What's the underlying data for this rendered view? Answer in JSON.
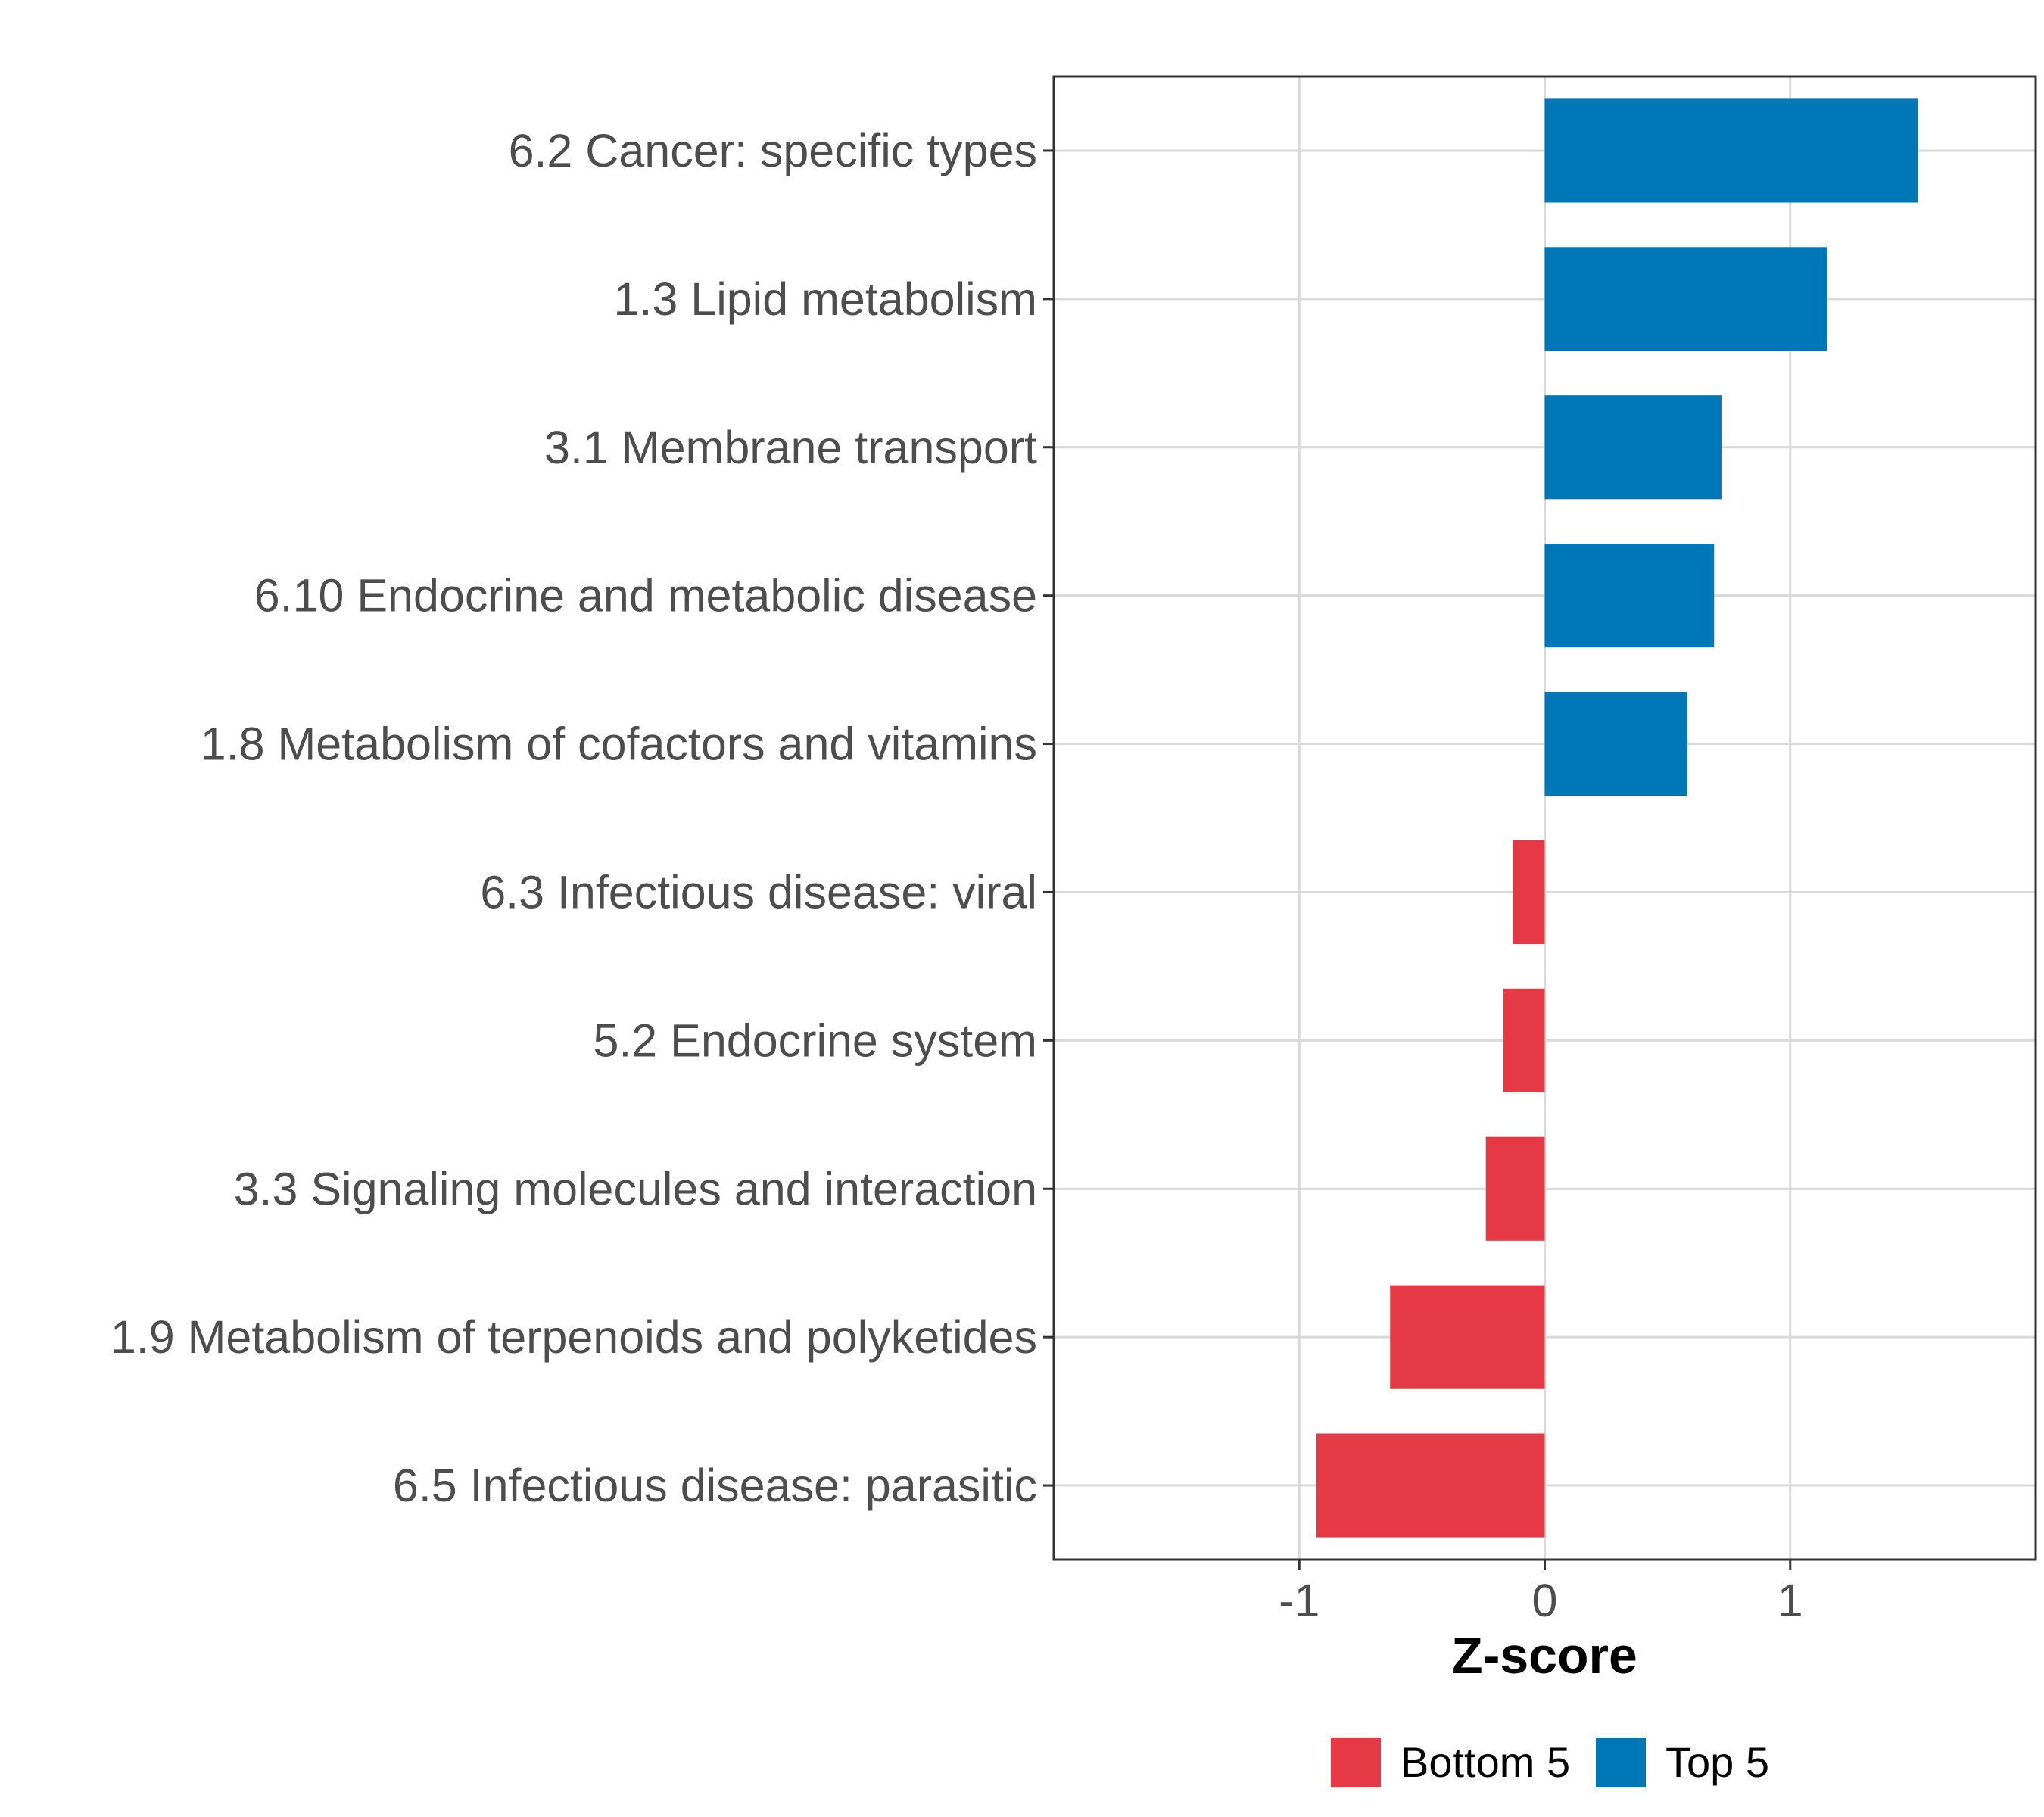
{
  "chart_data": {
    "type": "bar",
    "orientation": "horizontal",
    "title": "",
    "xlabel": "Z-score",
    "ylabel": "",
    "xlim": [
      -2,
      2
    ],
    "xticks": [
      -1,
      0,
      1
    ],
    "xtick_labels": [
      "-1",
      "0",
      "1"
    ],
    "grid": true,
    "legend_position": "bottom",
    "categories": [
      "6.2 Cancer: specific types",
      "1.3 Lipid metabolism",
      "3.1 Membrane transport",
      "6.10 Endocrine and metabolic disease",
      "1.8 Metabolism of cofactors and vitamins",
      "6.3 Infectious disease: viral",
      "5.2 Endocrine system",
      "3.3 Signaling molecules and interaction",
      "1.9 Metabolism of terpenoids and polyketides",
      "6.5 Infectious disease: parasitic"
    ],
    "values": [
      1.52,
      1.15,
      0.72,
      0.69,
      0.58,
      -0.13,
      -0.17,
      -0.24,
      -0.63,
      -0.93
    ],
    "groups": [
      "Top 5",
      "Top 5",
      "Top 5",
      "Top 5",
      "Top 5",
      "Bottom 5",
      "Bottom 5",
      "Bottom 5",
      "Bottom 5",
      "Bottom 5"
    ],
    "legend": [
      {
        "name": "Bottom 5",
        "color": "#e63946"
      },
      {
        "name": "Top 5",
        "color": "#0077b6"
      }
    ]
  }
}
